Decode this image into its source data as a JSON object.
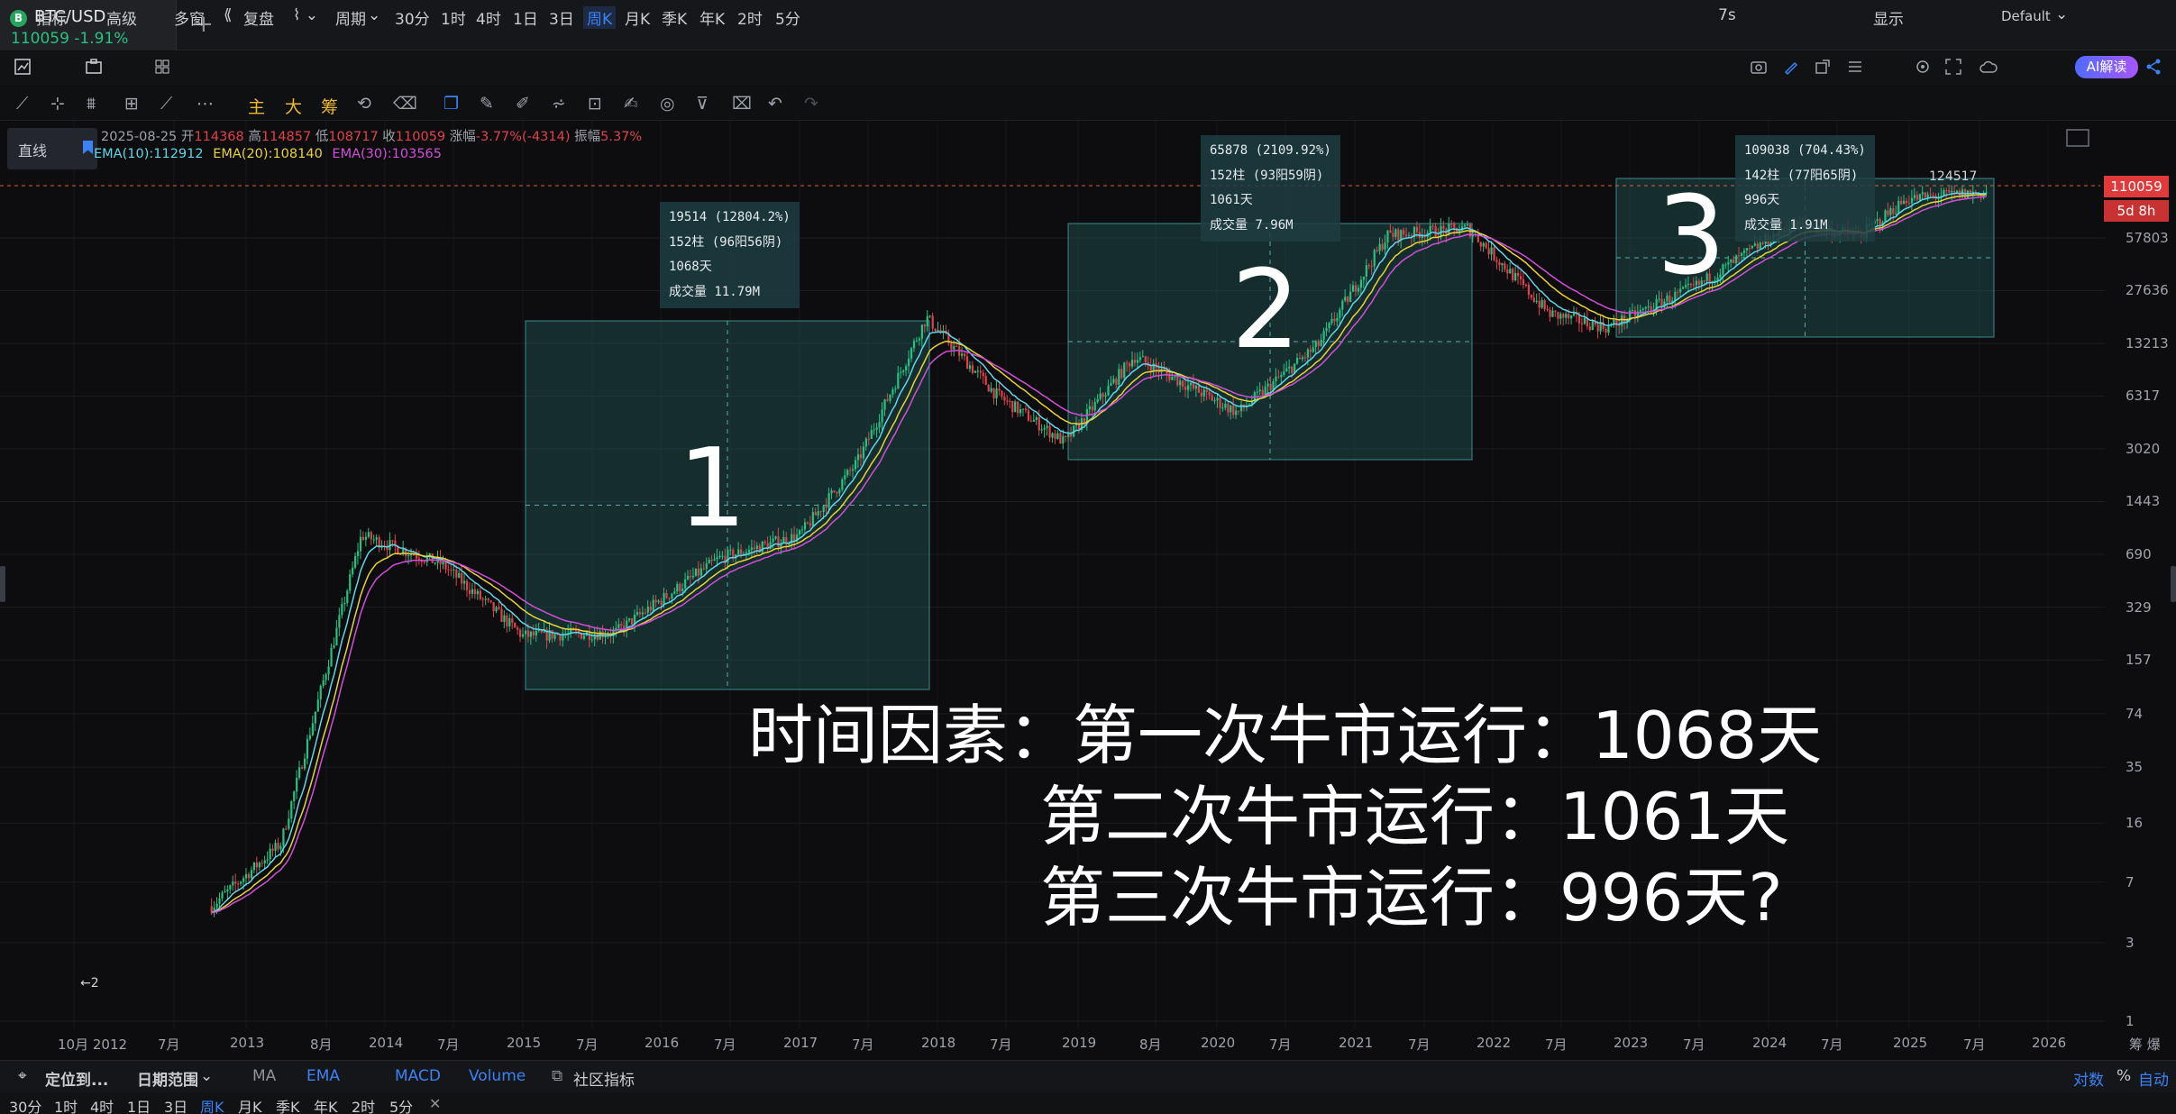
{
  "tab": {
    "symbol": "BTC/USD",
    "badge": "B",
    "price_change": "110059  -1.91%",
    "add": "+"
  },
  "toolbar1": {
    "indicators": "指标",
    "advanced": "高级",
    "multi_window": "多窗",
    "replay": "复盘",
    "chart_type": "⌇ ⌄",
    "period": "周期",
    "intervals": [
      "30分",
      "1时",
      "4时",
      "1日",
      "3日",
      "周K",
      "月K",
      "季K",
      "年K",
      "2时",
      "5分"
    ],
    "active_interval": "周K",
    "refresh": "7s",
    "display": "显示",
    "theme": "Default",
    "ai": "AI解读"
  },
  "toolbar2": {
    "main": "主",
    "big": "大",
    "chip": "筹"
  },
  "drawing_chip": {
    "label": "直线"
  },
  "ohlc": {
    "date": "2025-08-25",
    "open_label": "开",
    "open": "114368",
    "high_label": "高",
    "high": "114857",
    "low_label": "低",
    "low": "108717",
    "close_label": "收",
    "close": "110059",
    "change_label": "涨幅",
    "change": "-3.77%(-4314)",
    "amp_label": "振幅",
    "amp": "5.37%"
  },
  "ema": {
    "ema10": "EMA(10):112912",
    "ema20": "EMA(20):108140",
    "ema30": "EMA(30):103565"
  },
  "colors": {
    "bg": "#0d0d0f",
    "up": "#26c281",
    "down": "#e0424b",
    "ema10": "#5fd6e8",
    "ema20": "#e8d23a",
    "ema30": "#d04fd8",
    "box": "#1e4a4c",
    "accent": "#3b82f6"
  },
  "chart_data": {
    "type": "candlestick",
    "y_scale": "log",
    "ylim": [
      1,
      300000
    ],
    "y_ticks": [
      57803,
      27636,
      13213,
      6317,
      3020,
      1443,
      690,
      329,
      157,
      74,
      35,
      16,
      7,
      3,
      1
    ],
    "x_ticks": [
      "10月 2012",
      "7月",
      "2013",
      "8月",
      "2014",
      "7月",
      "2015",
      "7月",
      "2016",
      "7月",
      "2017",
      "7月",
      "2018",
      "7月",
      "2019",
      "8月",
      "2020",
      "7月",
      "2021",
      "7月",
      "2022",
      "7月",
      "2023",
      "7月",
      "2024",
      "7月",
      "2025",
      "7月",
      "2026"
    ],
    "axis_corner": "筹 爆",
    "last_price": "110059",
    "countdown": "5d 8h",
    "peak_label": "124517",
    "low_label": "←2",
    "series": [
      {
        "x": [
          "2012-10",
          "2013-04",
          "2013-11",
          "2014-06",
          "2015-01",
          "2015-09",
          "2016-06",
          "2017-01",
          "2017-06",
          "2017-12",
          "2018-06",
          "2018-12",
          "2019-06",
          "2020-03",
          "2020-10",
          "2021-04",
          "2021-11",
          "2022-06",
          "2022-11",
          "2023-07",
          "2024-03",
          "2024-09",
          "2025-01",
          "2025-08"
        ],
        "close": [
          5,
          12,
          900,
          600,
          220,
          230,
          650,
          900,
          2500,
          19000,
          6500,
          3300,
          11000,
          5000,
          13000,
          60000,
          66000,
          20000,
          16500,
          30000,
          70000,
          60000,
          100000,
          110059
        ]
      }
    ],
    "ranges": [
      {
        "label": "1",
        "stats": [
          "19514 (12804.2%)",
          "152柱 (96阳56阴)",
          "1068天",
          "成交量 11.79M"
        ]
      },
      {
        "label": "2",
        "stats": [
          "65878 (2109.92%)",
          "152柱 (93阳59阴)",
          "1061天",
          "成交量 7.96M"
        ]
      },
      {
        "label": "3",
        "stats": [
          "109038 (704.43%)",
          "142柱 (77阳65阴)",
          "996天",
          "成交量 1.91M"
        ]
      }
    ]
  },
  "annotation": {
    "line1": "时间因素：第一次牛市运行：1068天",
    "line2": "第二次牛市运行：1061天",
    "line3": "第三次牛市运行：996天?"
  },
  "bottombar": {
    "locate": "定位到...",
    "date_range": "日期范围",
    "ma": "MA",
    "ema": "EMA",
    "macd": "MACD",
    "volume": "Volume",
    "community": "社区指标",
    "log": "对数",
    "pct": "%",
    "auto": "自动"
  },
  "periodbar": {
    "items": [
      "30分",
      "1时",
      "4时",
      "1日",
      "3日",
      "周K",
      "月K",
      "季K",
      "年K",
      "2时",
      "5分",
      "✕"
    ],
    "active": "周K"
  }
}
